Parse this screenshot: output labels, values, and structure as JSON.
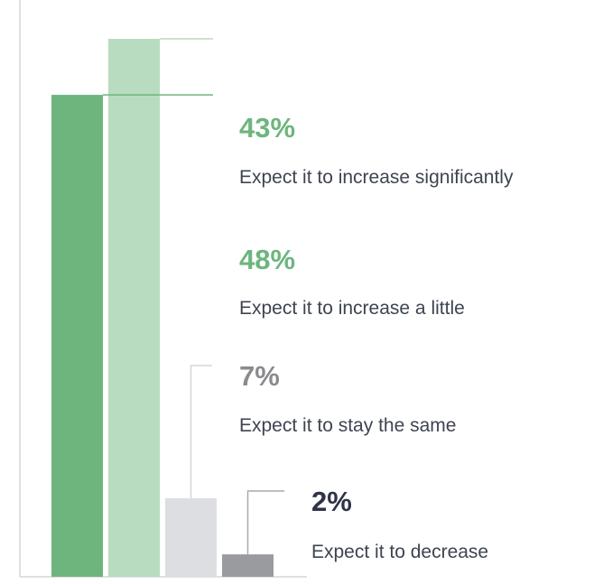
{
  "chart_data": {
    "type": "bar",
    "categories": [
      "Expect it to increase significantly",
      "Expect it to increase a little",
      "Expect it to stay the same",
      "Expect it to decrease"
    ],
    "values": [
      43,
      48,
      7,
      2
    ],
    "value_labels": [
      "43%",
      "48%",
      "7%",
      "2%"
    ],
    "colors": [
      "#6db57d",
      "#b8dcc0",
      "#dddee2",
      "#9a9b9e"
    ],
    "label_colors": [
      "#6db57d",
      "#6db57d",
      "#8a8b8e",
      "#2e3346"
    ],
    "leader_colors": [
      "#6db57d",
      "#b8dcc0",
      "#d4d5d9",
      "#a9aaad"
    ],
    "ylim": [
      0,
      48
    ],
    "grid": false,
    "legend": "none"
  }
}
